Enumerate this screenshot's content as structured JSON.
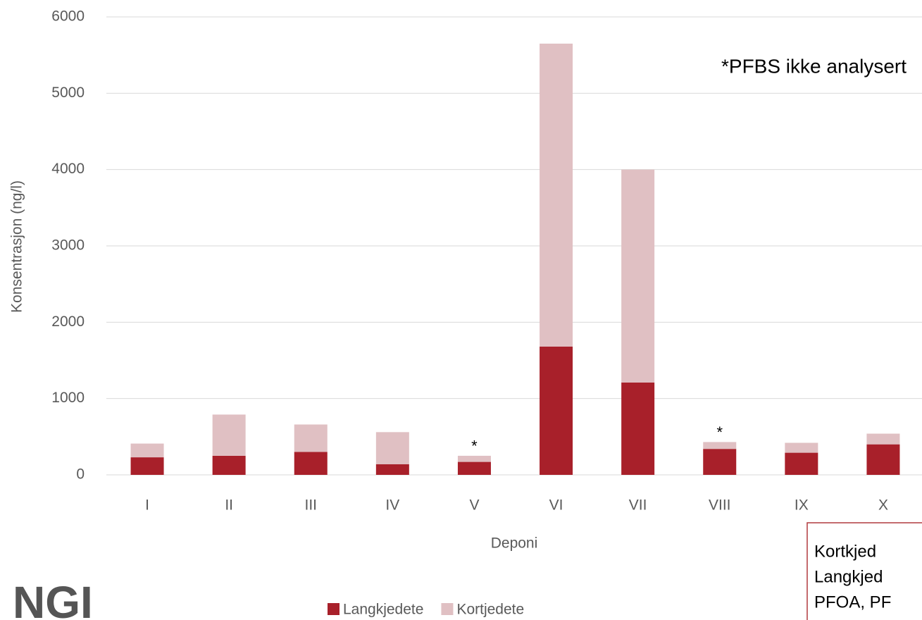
{
  "chart_data": {
    "type": "stacked_bar",
    "y_label": "Konsentrasjon (ng/l)",
    "x_label": "Deponi",
    "categories": [
      "I",
      "II",
      "III",
      "IV",
      "V",
      "VI",
      "VII",
      "VIII",
      "IX",
      "X"
    ],
    "series": [
      {
        "name": "Langkjedete",
        "color": "#a8202a",
        "values": [
          230,
          250,
          300,
          140,
          170,
          1680,
          1210,
          340,
          290,
          400
        ]
      },
      {
        "name": "Kortjedete",
        "color": "#e0c0c3",
        "values": [
          180,
          540,
          360,
          420,
          80,
          3970,
          2790,
          90,
          130,
          140
        ]
      }
    ],
    "ylim": [
      0,
      6000
    ],
    "yticks": [
      0,
      1000,
      2000,
      3000,
      4000,
      5000,
      6000
    ],
    "grid": true,
    "legend": "bottom",
    "note": "*PFBS ikke analysert",
    "annotations": [
      {
        "text": "*",
        "category": "V"
      },
      {
        "text": "*",
        "category": "VIII"
      }
    ],
    "box_lines": [
      "Kortkjed",
      "Langkjed",
      "PFOA, PF"
    ],
    "logo": "NGI"
  }
}
